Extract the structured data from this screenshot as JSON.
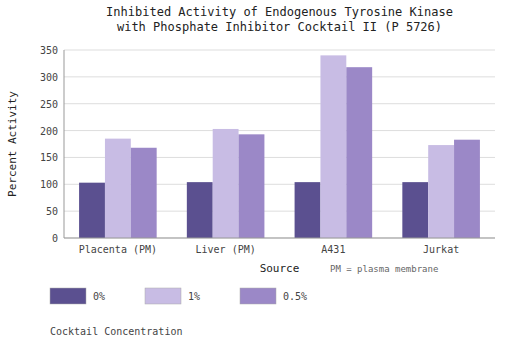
{
  "chart_data": {
    "type": "bar",
    "title": "Inhibited Activity of Endogenous Tyrosine Kinase\nwith Phosphate Inhibitor Cocktail II (P 5726)",
    "x_label": "Source",
    "y_label": "Percent Activity",
    "categories": [
      "Placenta (PM)",
      "Liver (PM)",
      "A431",
      "Jurkat"
    ],
    "series": [
      {
        "name": "0%",
        "color": "#5b5090",
        "values": [
          103,
          104,
          104,
          104
        ]
      },
      {
        "name": "1%",
        "color": "#c8bce4",
        "values": [
          185,
          203,
          340,
          173
        ]
      },
      {
        "name": "0.5%",
        "color": "#9b88c7",
        "values": [
          168,
          193,
          318,
          183
        ]
      }
    ],
    "ylim": [
      0,
      350
    ],
    "yticks": [
      0,
      50,
      100,
      150,
      200,
      250,
      300,
      350
    ],
    "grid": true,
    "legend": "bottom",
    "legend_title": "Cocktail Concentration",
    "annotations": [
      "PM = plasma membrane"
    ]
  }
}
